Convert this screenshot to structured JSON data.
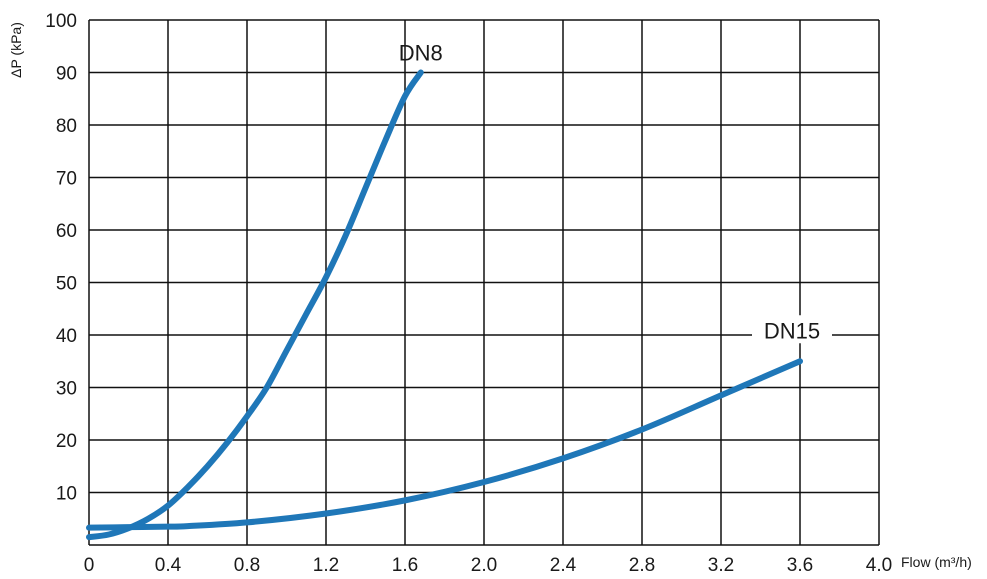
{
  "chart_data": {
    "type": "line",
    "title": "",
    "xlabel": "Flow (m³/h)",
    "ylabel": "ΔP (kPa)",
    "xlim": [
      0,
      4.0
    ],
    "ylim": [
      0,
      100
    ],
    "grid": true,
    "x_ticks": [
      "0",
      "0.4",
      "0.8",
      "1.2",
      "1.6",
      "2.0",
      "2.4",
      "2.8",
      "3.2",
      "3.6",
      "4.0"
    ],
    "y_ticks": [
      "10",
      "20",
      "30",
      "40",
      "50",
      "60",
      "70",
      "80",
      "90",
      "100"
    ],
    "line_color": "#1f77b8",
    "series": [
      {
        "name": "DN8",
        "x": [
          0.0,
          0.1,
          0.2,
          0.3,
          0.4,
          0.5,
          0.6,
          0.7,
          0.8,
          0.9,
          1.0,
          1.1,
          1.2,
          1.3,
          1.4,
          1.5,
          1.6,
          1.68
        ],
        "y": [
          1.5,
          2.0,
          3.2,
          5.0,
          7.5,
          11.0,
          15.0,
          19.5,
          24.5,
          30.0,
          37.0,
          44.0,
          51.0,
          59.0,
          68.0,
          77.0,
          85.5,
          90.0
        ]
      },
      {
        "name": "DN15",
        "x": [
          0.0,
          0.2,
          0.4,
          0.5,
          0.8,
          1.2,
          1.6,
          2.0,
          2.4,
          2.8,
          3.2,
          3.6
        ],
        "y": [
          3.3,
          3.4,
          3.5,
          3.6,
          4.3,
          6.0,
          8.5,
          12.0,
          16.5,
          22.0,
          28.5,
          35.0
        ]
      }
    ]
  }
}
